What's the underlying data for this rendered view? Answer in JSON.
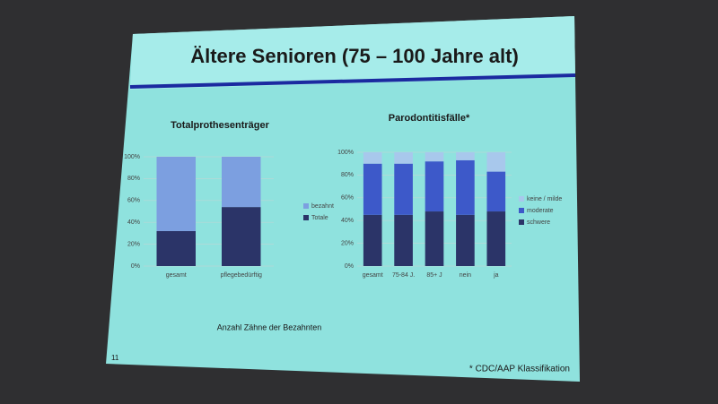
{
  "slide": {
    "title": "Ältere Senioren (75 – 100 Jahre alt)",
    "note": "Anzahl Zähne der Bezahnten",
    "page_number": "11",
    "footnote": "* CDC/AAP Klassifikation"
  },
  "chart_data": [
    {
      "type": "stacked-bar",
      "title": "Totalprothesenträger",
      "categories": [
        "gesamt",
        "pflegebedürftig"
      ],
      "series": [
        {
          "name": "Totale",
          "color": "#2b3468",
          "values": [
            32,
            54
          ]
        },
        {
          "name": "bezahnt",
          "color": "#7c9fe0",
          "values": [
            68,
            46
          ]
        }
      ],
      "ylim": [
        0,
        100
      ],
      "yticks": [
        {
          "value": 0,
          "label": "0%"
        },
        {
          "value": 20,
          "label": "20%"
        },
        {
          "value": 40,
          "label": "40%"
        },
        {
          "value": 60,
          "label": "60%"
        },
        {
          "value": 80,
          "label": "80%"
        },
        {
          "value": 100,
          "label": "100%"
        }
      ],
      "grid": true
    },
    {
      "type": "stacked-bar",
      "title": "Parodontitisfälle*",
      "categories": [
        "gesamt",
        "75-84 J.",
        "85+ J",
        "nein",
        "ja"
      ],
      "series": [
        {
          "name": "schwere",
          "color": "#2b3468",
          "values": [
            45,
            45,
            48,
            45,
            48
          ]
        },
        {
          "name": "moderate",
          "color": "#3d59c9",
          "values": [
            45,
            45,
            44,
            48,
            35
          ]
        },
        {
          "name": "keine / milde",
          "color": "#a8c8ec",
          "values": [
            10,
            10,
            8,
            7,
            17
          ]
        }
      ],
      "ylim": [
        0,
        100
      ],
      "yticks": [
        {
          "value": 0,
          "label": "0%"
        },
        {
          "value": 20,
          "label": "20%"
        },
        {
          "value": 40,
          "label": "40%"
        },
        {
          "value": 60,
          "label": "60%"
        },
        {
          "value": 80,
          "label": "80%"
        },
        {
          "value": 100,
          "label": "100%"
        }
      ],
      "grid": true
    }
  ]
}
